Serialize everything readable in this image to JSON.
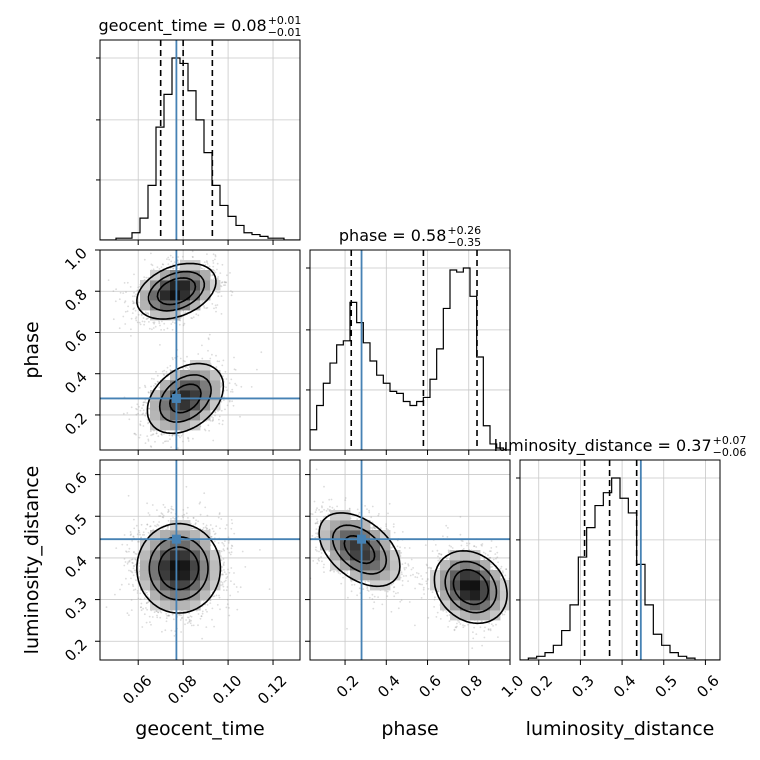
{
  "chart_data": {
    "type": "corner",
    "parameters": [
      "geocent_time",
      "phase",
      "luminosity_distance"
    ],
    "truths": {
      "geocent_time": 0.077,
      "phase": 0.28,
      "luminosity_distance": 0.445
    },
    "colors": {
      "truth": "#4682b4",
      "hist": "#000000",
      "grid": "#c8c8c8",
      "scatter": "#9a9a9a"
    },
    "grid": true,
    "axes": {
      "geocent_time": {
        "range": [
          0.043,
          0.132
        ],
        "ticks": [
          0.06,
          0.08,
          0.1,
          0.12
        ],
        "tick_labels": [
          "0.06",
          "0.08",
          "0.10",
          "0.12"
        ]
      },
      "phase": {
        "range": [
          0.03,
          1.0
        ],
        "ticks": [
          0.2,
          0.4,
          0.6,
          0.8,
          1.0
        ],
        "tick_labels": [
          "0.2",
          "0.4",
          "0.6",
          "0.8",
          "1.0"
        ]
      },
      "luminosity_distance": {
        "range": [
          0.155,
          0.635
        ],
        "ticks": [
          0.2,
          0.3,
          0.4,
          0.5,
          0.6
        ],
        "tick_labels": [
          "0.2",
          "0.3",
          "0.4",
          "0.5",
          "0.6"
        ]
      }
    },
    "titles": [
      {
        "name": "geocent_time",
        "prefix": "geocent_time = 0.08",
        "plus": "+0.01",
        "minus": "−0.01"
      },
      {
        "name": "phase",
        "prefix": "phase = 0.58",
        "plus": "+0.26",
        "minus": "−0.35"
      },
      {
        "name": "luminosity_distance",
        "prefix": "luminosity_distance = 0.37",
        "plus": "+0.07",
        "minus": "−0.06"
      }
    ],
    "quantiles": {
      "geocent_time": [
        0.07,
        0.08,
        0.093
      ],
      "phase": [
        0.23,
        0.58,
        0.84
      ],
      "luminosity_distance": [
        0.31,
        0.37,
        0.435
      ]
    },
    "histograms": {
      "geocent_time": {
        "edges_range": [
          0.043,
          0.132
        ],
        "counts": [
          0,
          0,
          1,
          1,
          4,
          12,
          30,
          62,
          80,
          100,
          97,
          82,
          66,
          48,
          30,
          19,
          13,
          8,
          4,
          3,
          2,
          1,
          1,
          0,
          0
        ]
      },
      "phase": {
        "edges_range": [
          0.03,
          1.0
        ],
        "counts": [
          10,
          22,
          33,
          43,
          52,
          54,
          73,
          63,
          53,
          44,
          37,
          33,
          29,
          28,
          24,
          22,
          24,
          26,
          35,
          50,
          70,
          89,
          88,
          90,
          76,
          46,
          12,
          3,
          1,
          0
        ]
      },
      "luminosity_distance": {
        "edges_range": [
          0.155,
          0.635
        ],
        "counts": [
          0,
          1,
          2,
          4,
          8,
          16,
          30,
          56,
          72,
          84,
          91,
          99,
          88,
          80,
          52,
          30,
          14,
          8,
          4,
          2,
          1,
          0,
          0,
          0
        ]
      }
    },
    "density_2d": {
      "phase_vs_geocent_time": {
        "modes": [
          {
            "x": 0.077,
            "y": 0.8,
            "sx": 0.0085,
            "sy": 0.065,
            "rho": 0.35,
            "w": 1.0
          },
          {
            "x": 0.081,
            "y": 0.28,
            "sx": 0.0085,
            "sy": 0.085,
            "rho": 0.35,
            "w": 0.85
          }
        ]
      },
      "luminosity_distance_vs_geocent_time": {
        "modes": [
          {
            "x": 0.078,
            "y": 0.375,
            "sx": 0.009,
            "sy": 0.052,
            "rho": 0.0,
            "w": 1.0
          }
        ]
      },
      "luminosity_distance_vs_phase": {
        "modes": [
          {
            "x": 0.27,
            "y": 0.42,
            "sx": 0.1,
            "sy": 0.045,
            "rho": -0.45,
            "w": 0.8
          },
          {
            "x": 0.81,
            "y": 0.33,
            "sx": 0.085,
            "sy": 0.042,
            "rho": -0.2,
            "w": 1.0
          }
        ]
      }
    }
  }
}
